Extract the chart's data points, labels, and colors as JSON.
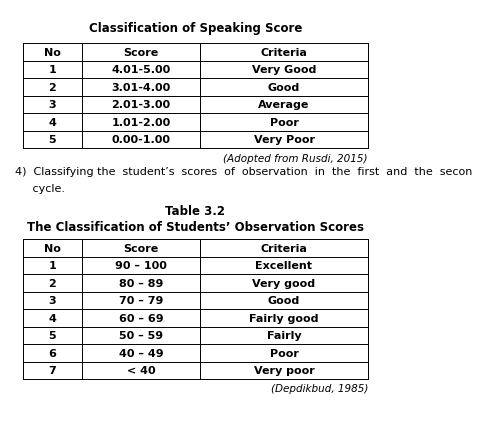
{
  "title1": "Classification of Speaking Score",
  "table1_headers": [
    "No",
    "Score",
    "Criteria"
  ],
  "table1_rows": [
    [
      "1",
      "4.01-5.00",
      "Very Good"
    ],
    [
      "2",
      "3.01-4.00",
      "Good"
    ],
    [
      "3",
      "2.01-3.00",
      "Average"
    ],
    [
      "4",
      "1.01-2.00",
      "Poor"
    ],
    [
      "5",
      "0.00-1.00",
      "Very Poor"
    ]
  ],
  "table1_note": "(Adopted from Rusdi, 2015)",
  "body_text1": "4)  Classifying the  student’s  scores  of  observation  in  the  first  and  the  secon",
  "body_text2": "     cycle.",
  "title2": "Table 3.2",
  "title2b": "The Classification of Students’ Observation Scores",
  "table2_headers": [
    "No",
    "Score",
    "Criteria"
  ],
  "table2_rows": [
    [
      "1",
      "90 – 100",
      "Excellent"
    ],
    [
      "2",
      "80 – 89",
      "Very good"
    ],
    [
      "3",
      "70 – 79",
      "Good"
    ],
    [
      "4",
      "60 – 69",
      "Fairly good"
    ],
    [
      "5",
      "50 – 59",
      "Fairly"
    ],
    [
      "6",
      "40 – 49",
      "Poor"
    ],
    [
      "7",
      "< 40",
      "Very poor"
    ]
  ],
  "table2_note": "(Depdikbud, 1985)",
  "bg_color": "#ffffff",
  "text_color": "#000000",
  "lw": 0.7
}
